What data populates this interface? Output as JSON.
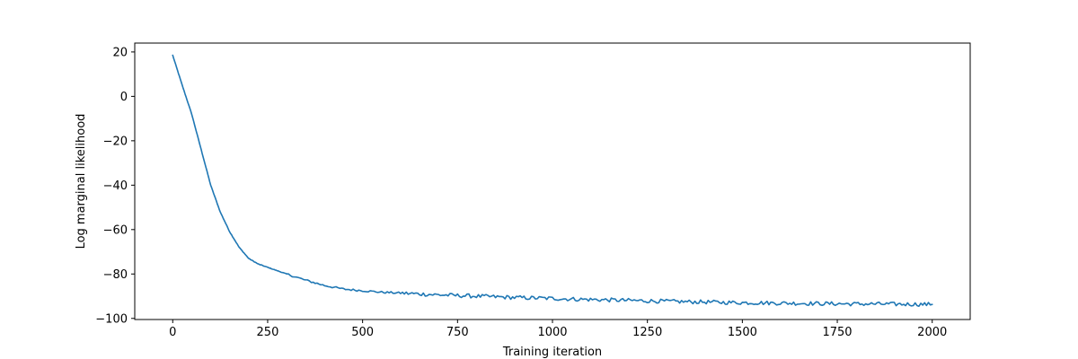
{
  "chart_data": {
    "type": "line",
    "title": "",
    "xlabel": "Training iteration",
    "ylabel": "Log marginal likelihood",
    "xlim": [
      -100,
      2100
    ],
    "ylim": [
      -100.5,
      24
    ],
    "x_ticks": [
      0,
      250,
      500,
      750,
      1000,
      1250,
      1500,
      1750,
      2000
    ],
    "y_ticks": [
      -100,
      -80,
      -60,
      -40,
      -20,
      0,
      20
    ],
    "x_tick_labels": [
      "0",
      "250",
      "500",
      "750",
      "1000",
      "1250",
      "1500",
      "1750",
      "2000"
    ],
    "y_tick_labels": [
      "−100",
      "−80",
      "−60",
      "−40",
      "−20",
      "0",
      "20"
    ],
    "grid": false,
    "series": [
      {
        "color": "#1f77b4",
        "x": [
          0,
          25,
          50,
          75,
          100,
          125,
          150,
          175,
          200,
          225,
          250,
          275,
          300,
          350,
          400,
          450,
          500,
          550,
          600,
          650,
          700,
          750,
          800,
          850,
          900,
          950,
          1000,
          1050,
          1100,
          1150,
          1200,
          1250,
          1300,
          1350,
          1400,
          1450,
          1500,
          1550,
          1600,
          1650,
          1700,
          1750,
          1800,
          1850,
          1900,
          1950,
          2000
        ],
        "y": [
          18.5,
          5,
          -8,
          -24,
          -40,
          -52,
          -61,
          -68,
          -73,
          -75.5,
          -77,
          -78.5,
          -80,
          -82.8,
          -85.2,
          -86.8,
          -87.5,
          -88.2,
          -88.6,
          -89,
          -89.4,
          -89.7,
          -90,
          -90.3,
          -90.6,
          -90.8,
          -91,
          -91.3,
          -91.5,
          -91.7,
          -91.9,
          -92.1,
          -92.3,
          -92.5,
          -92.6,
          -92.8,
          -92.9,
          -93,
          -93.1,
          -93.2,
          -93.3,
          -93.4,
          -93.5,
          -93.5,
          -93.6,
          -93.6,
          -93.7
        ]
      }
    ]
  }
}
